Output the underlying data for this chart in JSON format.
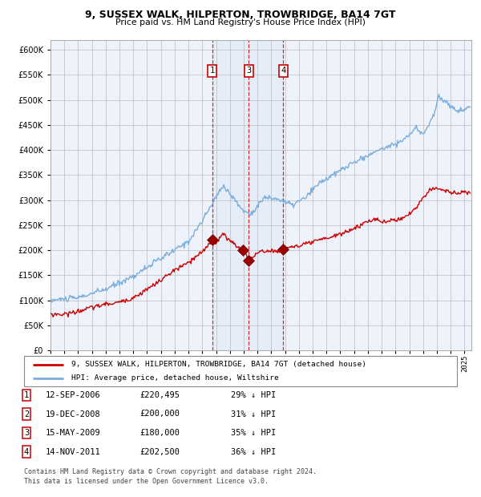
{
  "title1": "9, SUSSEX WALK, HILPERTON, TROWBRIDGE, BA14 7GT",
  "title2": "Price paid vs. HM Land Registry's House Price Index (HPI)",
  "hpi_color": "#7aaddb",
  "price_color": "#cc0000",
  "transactions": [
    {
      "num": 1,
      "date_f": "12-SEP-2006",
      "price": 220495,
      "pct": "29%",
      "year_x": 2006.71
    },
    {
      "num": 2,
      "date_f": "19-DEC-2008",
      "price": 200000,
      "pct": "31%",
      "year_x": 2008.96
    },
    {
      "num": 3,
      "date_f": "15-MAY-2009",
      "price": 180000,
      "pct": "35%",
      "year_x": 2009.37
    },
    {
      "num": 4,
      "date_f": "14-NOV-2011",
      "price": 202500,
      "pct": "36%",
      "year_x": 2011.87
    }
  ],
  "legend_label_red": "9, SUSSEX WALK, HILPERTON, TROWBRIDGE, BA14 7GT (detached house)",
  "legend_label_blue": "HPI: Average price, detached house, Wiltshire",
  "footnote1": "Contains HM Land Registry data © Crown copyright and database right 2024.",
  "footnote2": "This data is licensed under the Open Government Licence v3.0.",
  "ylim": [
    0,
    620000
  ],
  "xlim_start": 1995.0,
  "xlim_end": 2025.5,
  "hpi_points": {
    "1995.0": 100000,
    "1997.0": 105000,
    "1999.0": 122000,
    "2001.0": 148000,
    "2002.5": 175000,
    "2004.0": 200000,
    "2005.0": 218000,
    "2006.0": 258000,
    "2007.5": 330000,
    "2008.5": 295000,
    "2009.0": 278000,
    "2009.5": 272000,
    "2010.5": 305000,
    "2011.5": 302000,
    "2012.5": 290000,
    "2013.5": 305000,
    "2014.5": 335000,
    "2015.5": 350000,
    "2016.5": 368000,
    "2017.5": 382000,
    "2018.5": 396000,
    "2019.5": 408000,
    "2020.5": 418000,
    "2021.5": 443000,
    "2022.0": 432000,
    "2022.8": 470000,
    "2023.1": 508000,
    "2023.5": 498000,
    "2024.0": 488000,
    "2024.5": 478000,
    "2025.0": 480000,
    "2025.4": 488000
  },
  "red_points": {
    "1995.0": 72000,
    "1996.0": 72000,
    "1997.0": 78000,
    "1998.0": 86000,
    "1999.0": 92000,
    "2000.0": 96000,
    "2001.0": 105000,
    "2002.0": 122000,
    "2003.0": 140000,
    "2004.0": 160000,
    "2005.0": 175000,
    "2006.0": 196000,
    "2006.71": 220000,
    "2007.0": 215000,
    "2007.5": 232000,
    "2008.0": 220000,
    "2008.5": 208000,
    "2008.96": 200000,
    "2009.2": 192000,
    "2009.37": 180000,
    "2009.6": 186000,
    "2010.0": 194000,
    "2010.5": 198000,
    "2011.0": 200000,
    "2011.5": 196000,
    "2011.87": 202500,
    "2012.0": 204000,
    "2012.5": 208000,
    "2013.0": 207000,
    "2013.5": 212000,
    "2014.0": 216000,
    "2014.5": 220000,
    "2015.0": 224000,
    "2015.5": 228000,
    "2016.0": 232000,
    "2016.5": 237000,
    "2017.0": 244000,
    "2017.5": 250000,
    "2018.0": 258000,
    "2018.5": 262000,
    "2019.0": 256000,
    "2019.5": 258000,
    "2020.0": 260000,
    "2020.5": 265000,
    "2021.0": 272000,
    "2021.5": 285000,
    "2022.0": 305000,
    "2022.5": 320000,
    "2023.0": 325000,
    "2023.5": 320000,
    "2024.0": 315000,
    "2024.5": 314000,
    "2025.0": 316000,
    "2025.4": 314000
  }
}
